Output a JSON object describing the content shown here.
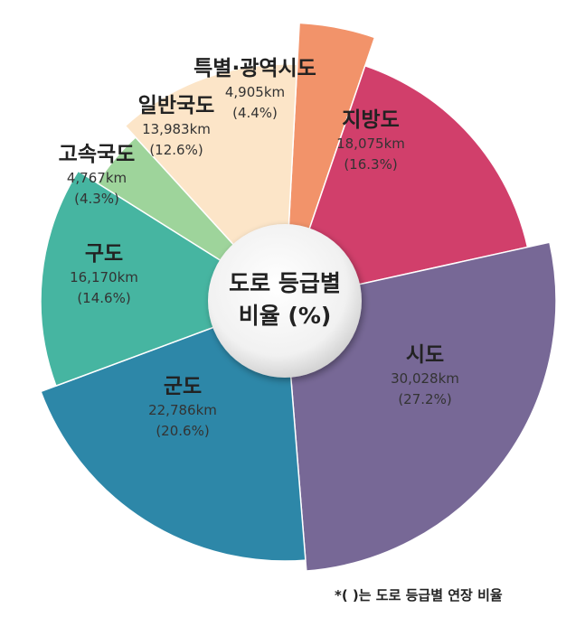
{
  "chart_data": {
    "type": "pie",
    "center_title": [
      "도로 등급별",
      "비율 (%)"
    ],
    "slices": [
      {
        "name": "특별·광역시도",
        "length": "4,905km",
        "percent_label": "(4.4%)",
        "value": 4.4,
        "color": "#f2936a"
      },
      {
        "name": "지방도",
        "length": "18,075km",
        "percent_label": "(16.3%)",
        "value": 16.3,
        "color": "#d13f6b"
      },
      {
        "name": "시도",
        "length": "30,028km",
        "percent_label": "(27.2%)",
        "value": 27.2,
        "color": "#776896"
      },
      {
        "name": "군도",
        "length": "22,786km",
        "percent_label": "(20.6%)",
        "value": 20.6,
        "color": "#2d87a8"
      },
      {
        "name": "구도",
        "length": "16,170km",
        "percent_label": "(14.6%)",
        "value": 14.6,
        "color": "#46b5a1"
      },
      {
        "name": "고속국도",
        "length": "4,767km",
        "percent_label": "(4.3%)",
        "value": 4.3,
        "color": "#9ed49b"
      },
      {
        "name": "일반국도",
        "length": "13,983km",
        "percent_label": "(12.6%)",
        "value": 12.6,
        "color": "#fce5c8"
      }
    ]
  },
  "footnote": "*(  )는 도로 등급별 연장 비율"
}
